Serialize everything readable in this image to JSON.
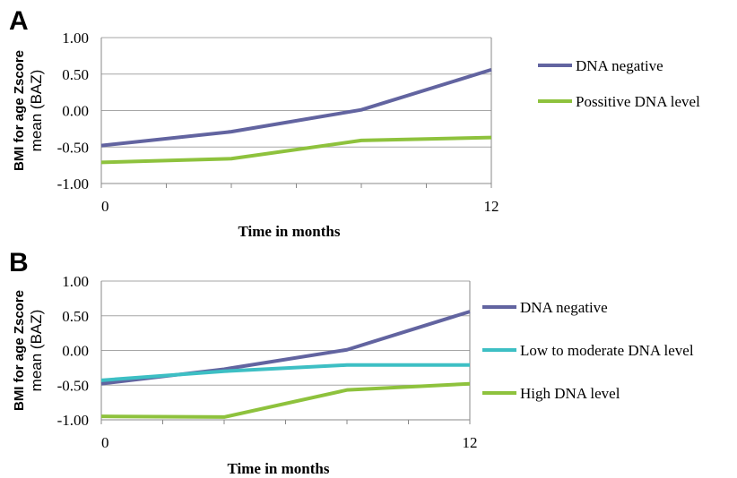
{
  "chart_data": [
    {
      "panel": "A",
      "type": "line",
      "x": [
        0,
        4,
        8,
        12
      ],
      "xticks": [
        "0",
        "12"
      ],
      "xtick_values": [
        0,
        12
      ],
      "xlabel": "Time in months",
      "ylabel_line1": "BMI for age Zscore",
      "ylabel_line2": "mean  (BAZ)",
      "ylim": [
        -1.0,
        1.0
      ],
      "yticks": [
        "1.00",
        "0.50",
        "0.00",
        "-0.50",
        "-1.00"
      ],
      "ytick_values": [
        1.0,
        0.5,
        0.0,
        -0.5,
        -1.0
      ],
      "grid": true,
      "legend_position": "right",
      "series": [
        {
          "name": "DNA negative",
          "color": "#6264a0",
          "values": [
            -0.48,
            -0.29,
            0.01,
            0.56
          ]
        },
        {
          "name": "Possitive DNA level",
          "color": "#8ec23d",
          "values": [
            -0.71,
            -0.66,
            -0.41,
            -0.37
          ]
        }
      ]
    },
    {
      "panel": "B",
      "type": "line",
      "x": [
        0,
        4,
        8,
        12
      ],
      "xticks": [
        "0",
        "12"
      ],
      "xtick_values": [
        0,
        12
      ],
      "xlabel": "Time in months",
      "ylabel_line1": "BMI for age Zscore",
      "ylabel_line2": "mean  (BAZ)",
      "ylim": [
        -1.0,
        1.0
      ],
      "yticks": [
        "1.00",
        "0.50",
        "0.00",
        "-0.50",
        "-1.00"
      ],
      "ytick_values": [
        1.0,
        0.5,
        0.0,
        -0.5,
        -1.0
      ],
      "grid": true,
      "legend_position": "right",
      "series": [
        {
          "name": "DNA negative",
          "color": "#6264a0",
          "values": [
            -0.48,
            -0.27,
            0.01,
            0.56
          ]
        },
        {
          "name": "Low to moderate DNA level",
          "color": "#3dbfc4",
          "values": [
            -0.43,
            -0.3,
            -0.21,
            -0.21
          ]
        },
        {
          "name": "High DNA level",
          "color": "#8ec23d",
          "values": [
            -0.95,
            -0.96,
            -0.57,
            -0.48
          ]
        }
      ]
    }
  ]
}
